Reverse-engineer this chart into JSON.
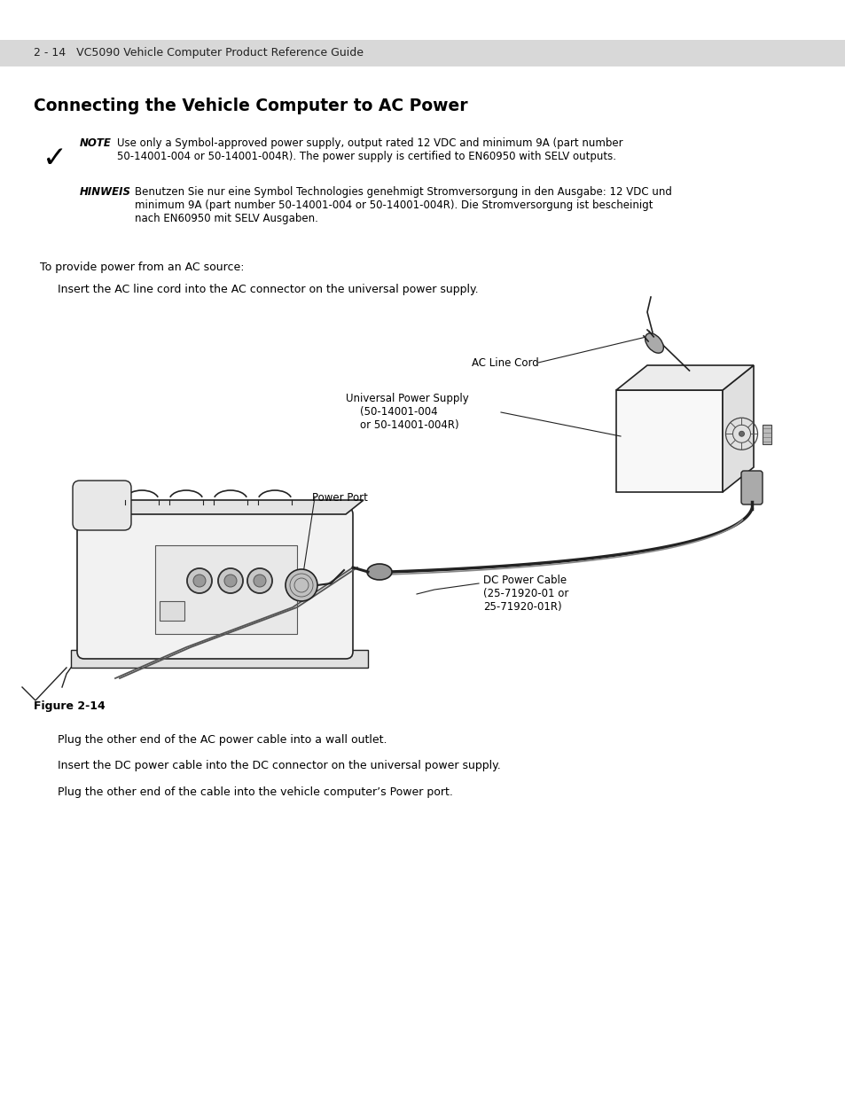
{
  "bg_color": "#ffffff",
  "header_bg": "#d8d8d8",
  "header_text": "2 - 14   VC5090 Vehicle Computer Product Reference Guide",
  "header_text_color": "#222222",
  "header_fontsize": 9.0,
  "title": "Connecting the Vehicle Computer to AC Power",
  "title_fontsize": 13.5,
  "note_label": "NOTE",
  "note_line1": "Use only a Symbol-approved power supply, output rated 12 VDC and minimum 9A (part number",
  "note_line2": "50-14001-004 or 50-14001-004R). The power supply is certified to EN60950 with SELV outputs.",
  "hinweis_label": "HINWEIS",
  "hinweis_line1": "Benutzen Sie nur eine Symbol Technologies genehmigt Stromversorgung in den Ausgabe: 12 VDC und",
  "hinweis_line2": "minimum 9A (part number 50-14001-004 or 50-14001-004R). Die Stromversorgung ist bescheinigt",
  "hinweis_line3": "nach EN60950 mit SELV Ausgaben.",
  "intro_text": "To provide power from an AC source:",
  "step1_text": "Insert the AC line cord into the AC connector on the universal power supply.",
  "figure_caption": "Figure 2-14",
  "step2_text": "Plug the other end of the AC power cable into a wall outlet.",
  "step3_text": "Insert the DC power cable into the DC connector on the universal power supply.",
  "step4_text": "Plug the other end of the cable into the vehicle computer’s Power port.",
  "label_ac_line_cord": "AC Line Cord",
  "label_ups_line1": "Universal Power Supply",
  "label_ups_line2": "(50-14001-004",
  "label_ups_line3": "or 50-14001-004R)",
  "label_power_port": "Power Port",
  "label_dc_line1": "DC Power Cable",
  "label_dc_line2": "(25-71920-01 or",
  "label_dc_line3": "25-71920-01R)"
}
